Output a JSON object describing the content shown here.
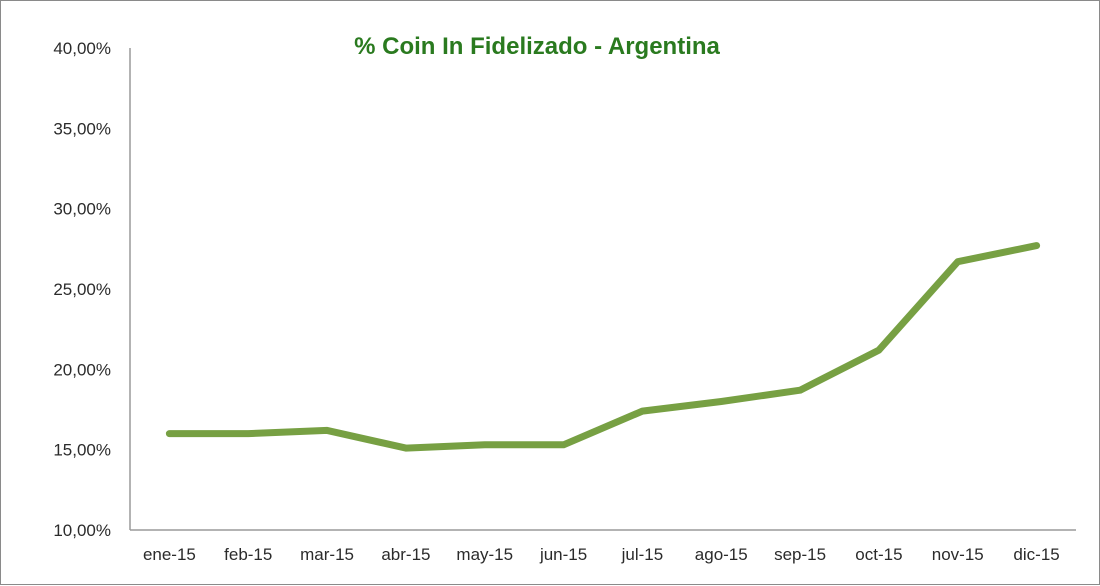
{
  "chart_data": {
    "type": "line",
    "title": "% Coin In Fidelizado - Argentina",
    "categories": [
      "ene-15",
      "feb-15",
      "mar-15",
      "abr-15",
      "may-15",
      "jun-15",
      "jul-15",
      "ago-15",
      "sep-15",
      "oct-15",
      "nov-15",
      "dic-15"
    ],
    "series": [
      {
        "values": [
          16.0,
          16.0,
          16.2,
          15.1,
          15.3,
          15.3,
          17.4,
          18.0,
          18.7,
          21.2,
          26.7,
          27.7
        ]
      }
    ],
    "yticks": [
      "40,00%",
      "35,00%",
      "30,00%",
      "25,00%",
      "20,00%",
      "15,00%",
      "10,00%"
    ],
    "ylim": [
      10,
      40
    ],
    "grid": false,
    "legend": "none",
    "colors": {
      "line": "#77a043",
      "title": "#2a7a1f",
      "axis": "#9a9a9a",
      "text": "#2b2b2b"
    }
  }
}
